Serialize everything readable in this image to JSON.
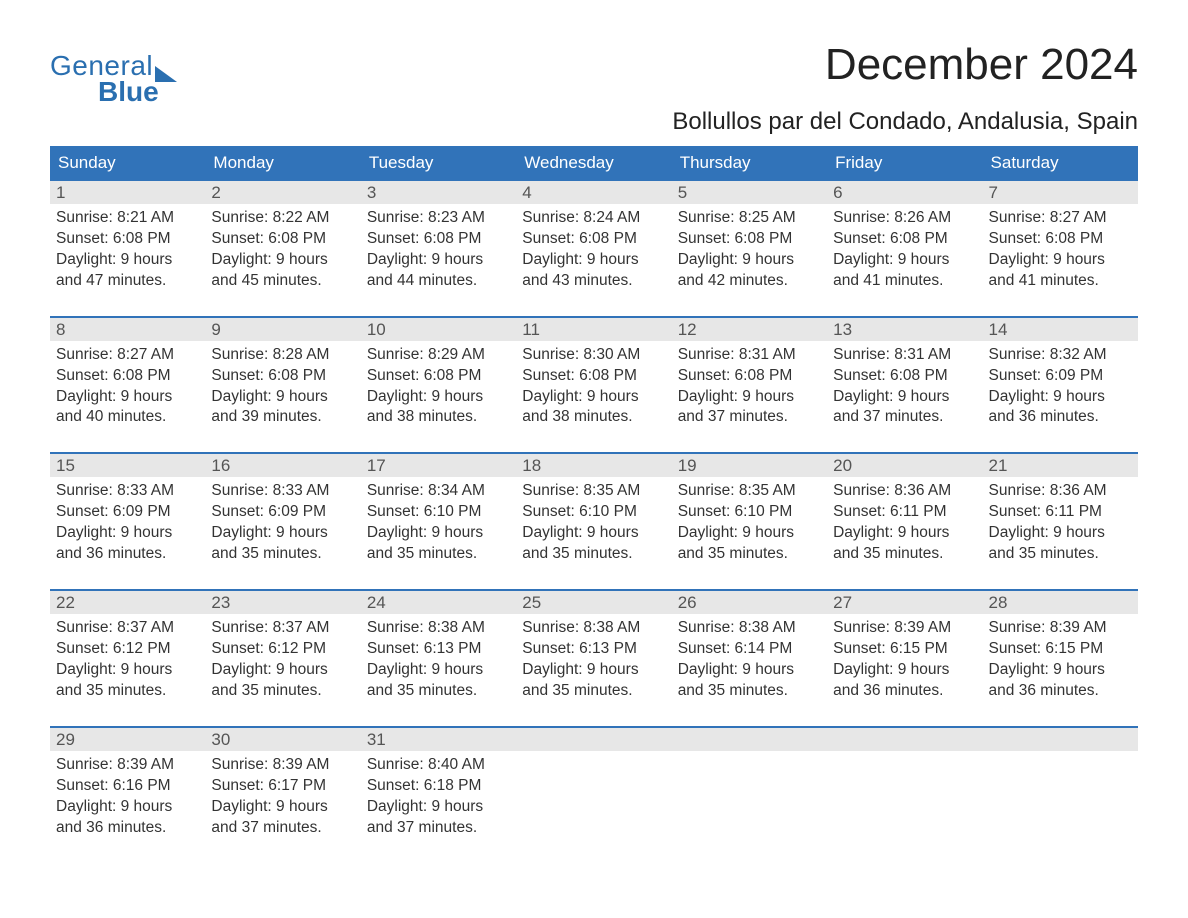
{
  "logo": {
    "line1": "General",
    "line2": "Blue"
  },
  "title": "December 2024",
  "location": "Bollullos par del Condado, Andalusia, Spain",
  "colors": {
    "brand_blue": "#3173b9",
    "logo_blue": "#2a6fb0",
    "daynum_bg": "#e7e7e7",
    "text": "#222222",
    "muted": "#555555",
    "background": "#ffffff"
  },
  "layout": {
    "columns": 7,
    "rows": 5,
    "first_weekday": "Sunday"
  },
  "weekdays": [
    "Sunday",
    "Monday",
    "Tuesday",
    "Wednesday",
    "Thursday",
    "Friday",
    "Saturday"
  ],
  "days": [
    {
      "n": 1,
      "sunrise": "Sunrise: 8:21 AM",
      "sunset": "Sunset: 6:08 PM",
      "d1": "Daylight: 9 hours",
      "d2": "and 47 minutes."
    },
    {
      "n": 2,
      "sunrise": "Sunrise: 8:22 AM",
      "sunset": "Sunset: 6:08 PM",
      "d1": "Daylight: 9 hours",
      "d2": "and 45 minutes."
    },
    {
      "n": 3,
      "sunrise": "Sunrise: 8:23 AM",
      "sunset": "Sunset: 6:08 PM",
      "d1": "Daylight: 9 hours",
      "d2": "and 44 minutes."
    },
    {
      "n": 4,
      "sunrise": "Sunrise: 8:24 AM",
      "sunset": "Sunset: 6:08 PM",
      "d1": "Daylight: 9 hours",
      "d2": "and 43 minutes."
    },
    {
      "n": 5,
      "sunrise": "Sunrise: 8:25 AM",
      "sunset": "Sunset: 6:08 PM",
      "d1": "Daylight: 9 hours",
      "d2": "and 42 minutes."
    },
    {
      "n": 6,
      "sunrise": "Sunrise: 8:26 AM",
      "sunset": "Sunset: 6:08 PM",
      "d1": "Daylight: 9 hours",
      "d2": "and 41 minutes."
    },
    {
      "n": 7,
      "sunrise": "Sunrise: 8:27 AM",
      "sunset": "Sunset: 6:08 PM",
      "d1": "Daylight: 9 hours",
      "d2": "and 41 minutes."
    },
    {
      "n": 8,
      "sunrise": "Sunrise: 8:27 AM",
      "sunset": "Sunset: 6:08 PM",
      "d1": "Daylight: 9 hours",
      "d2": "and 40 minutes."
    },
    {
      "n": 9,
      "sunrise": "Sunrise: 8:28 AM",
      "sunset": "Sunset: 6:08 PM",
      "d1": "Daylight: 9 hours",
      "d2": "and 39 minutes."
    },
    {
      "n": 10,
      "sunrise": "Sunrise: 8:29 AM",
      "sunset": "Sunset: 6:08 PM",
      "d1": "Daylight: 9 hours",
      "d2": "and 38 minutes."
    },
    {
      "n": 11,
      "sunrise": "Sunrise: 8:30 AM",
      "sunset": "Sunset: 6:08 PM",
      "d1": "Daylight: 9 hours",
      "d2": "and 38 minutes."
    },
    {
      "n": 12,
      "sunrise": "Sunrise: 8:31 AM",
      "sunset": "Sunset: 6:08 PM",
      "d1": "Daylight: 9 hours",
      "d2": "and 37 minutes."
    },
    {
      "n": 13,
      "sunrise": "Sunrise: 8:31 AM",
      "sunset": "Sunset: 6:08 PM",
      "d1": "Daylight: 9 hours",
      "d2": "and 37 minutes."
    },
    {
      "n": 14,
      "sunrise": "Sunrise: 8:32 AM",
      "sunset": "Sunset: 6:09 PM",
      "d1": "Daylight: 9 hours",
      "d2": "and 36 minutes."
    },
    {
      "n": 15,
      "sunrise": "Sunrise: 8:33 AM",
      "sunset": "Sunset: 6:09 PM",
      "d1": "Daylight: 9 hours",
      "d2": "and 36 minutes."
    },
    {
      "n": 16,
      "sunrise": "Sunrise: 8:33 AM",
      "sunset": "Sunset: 6:09 PM",
      "d1": "Daylight: 9 hours",
      "d2": "and 35 minutes."
    },
    {
      "n": 17,
      "sunrise": "Sunrise: 8:34 AM",
      "sunset": "Sunset: 6:10 PM",
      "d1": "Daylight: 9 hours",
      "d2": "and 35 minutes."
    },
    {
      "n": 18,
      "sunrise": "Sunrise: 8:35 AM",
      "sunset": "Sunset: 6:10 PM",
      "d1": "Daylight: 9 hours",
      "d2": "and 35 minutes."
    },
    {
      "n": 19,
      "sunrise": "Sunrise: 8:35 AM",
      "sunset": "Sunset: 6:10 PM",
      "d1": "Daylight: 9 hours",
      "d2": "and 35 minutes."
    },
    {
      "n": 20,
      "sunrise": "Sunrise: 8:36 AM",
      "sunset": "Sunset: 6:11 PM",
      "d1": "Daylight: 9 hours",
      "d2": "and 35 minutes."
    },
    {
      "n": 21,
      "sunrise": "Sunrise: 8:36 AM",
      "sunset": "Sunset: 6:11 PM",
      "d1": "Daylight: 9 hours",
      "d2": "and 35 minutes."
    },
    {
      "n": 22,
      "sunrise": "Sunrise: 8:37 AM",
      "sunset": "Sunset: 6:12 PM",
      "d1": "Daylight: 9 hours",
      "d2": "and 35 minutes."
    },
    {
      "n": 23,
      "sunrise": "Sunrise: 8:37 AM",
      "sunset": "Sunset: 6:12 PM",
      "d1": "Daylight: 9 hours",
      "d2": "and 35 minutes."
    },
    {
      "n": 24,
      "sunrise": "Sunrise: 8:38 AM",
      "sunset": "Sunset: 6:13 PM",
      "d1": "Daylight: 9 hours",
      "d2": "and 35 minutes."
    },
    {
      "n": 25,
      "sunrise": "Sunrise: 8:38 AM",
      "sunset": "Sunset: 6:13 PM",
      "d1": "Daylight: 9 hours",
      "d2": "and 35 minutes."
    },
    {
      "n": 26,
      "sunrise": "Sunrise: 8:38 AM",
      "sunset": "Sunset: 6:14 PM",
      "d1": "Daylight: 9 hours",
      "d2": "and 35 minutes."
    },
    {
      "n": 27,
      "sunrise": "Sunrise: 8:39 AM",
      "sunset": "Sunset: 6:15 PM",
      "d1": "Daylight: 9 hours",
      "d2": "and 36 minutes."
    },
    {
      "n": 28,
      "sunrise": "Sunrise: 8:39 AM",
      "sunset": "Sunset: 6:15 PM",
      "d1": "Daylight: 9 hours",
      "d2": "and 36 minutes."
    },
    {
      "n": 29,
      "sunrise": "Sunrise: 8:39 AM",
      "sunset": "Sunset: 6:16 PM",
      "d1": "Daylight: 9 hours",
      "d2": "and 36 minutes."
    },
    {
      "n": 30,
      "sunrise": "Sunrise: 8:39 AM",
      "sunset": "Sunset: 6:17 PM",
      "d1": "Daylight: 9 hours",
      "d2": "and 37 minutes."
    },
    {
      "n": 31,
      "sunrise": "Sunrise: 8:40 AM",
      "sunset": "Sunset: 6:18 PM",
      "d1": "Daylight: 9 hours",
      "d2": "and 37 minutes."
    }
  ]
}
